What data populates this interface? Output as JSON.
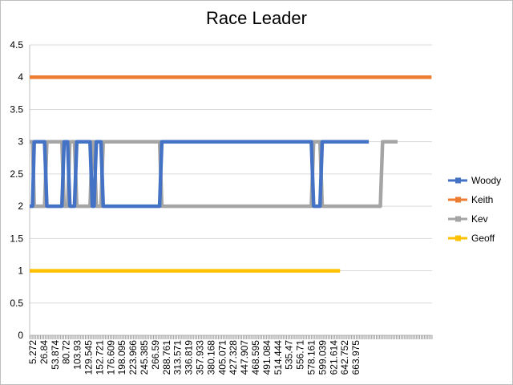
{
  "chart_data": {
    "type": "line",
    "title": "Race Leader",
    "xlabel": "",
    "ylabel": "",
    "ylim": [
      0,
      4.5
    ],
    "yticks": [
      "0",
      "0.5",
      "1",
      "1.5",
      "2",
      "2.5",
      "3",
      "3.5",
      "4",
      "4.5"
    ],
    "xtick_labels": [
      "5.272",
      "26.84",
      "53.874",
      "80.72",
      "103.93",
      "129.545",
      "152.721",
      "176.609",
      "198.095",
      "223.966",
      "245.385",
      "266.59",
      "288.761",
      "313.571",
      "336.819",
      "357.933",
      "380.168",
      "405.071",
      "427.328",
      "447.907",
      "468.595",
      "491.084",
      "514.444",
      "535.47",
      "556.71",
      "578.161",
      "599.039",
      "621.614",
      "642.752",
      "663.975"
    ],
    "x_range": [
      0,
      700
    ],
    "grid": true,
    "legend_position": "right",
    "series": [
      {
        "name": "Woody",
        "color": "#4472C4",
        "points": [
          [
            0,
            2
          ],
          [
            5,
            2
          ],
          [
            8,
            3
          ],
          [
            26,
            3
          ],
          [
            30,
            2
          ],
          [
            56,
            2
          ],
          [
            60,
            3
          ],
          [
            66,
            3
          ],
          [
            70,
            2
          ],
          [
            78,
            2
          ],
          [
            82,
            3
          ],
          [
            105,
            3
          ],
          [
            109,
            2
          ],
          [
            112,
            2
          ],
          [
            116,
            3
          ],
          [
            124,
            3
          ],
          [
            128,
            2
          ],
          [
            226,
            2
          ],
          [
            230,
            3
          ],
          [
            490,
            3
          ],
          [
            494,
            2
          ],
          [
            505,
            2
          ],
          [
            509,
            3
          ],
          [
            590,
            3
          ]
        ]
      },
      {
        "name": "Keith",
        "color": "#ED7D31",
        "points": [
          [
            0,
            4
          ],
          [
            699,
            4
          ]
        ]
      },
      {
        "name": "Kev",
        "color": "#A5A5A5",
        "points": [
          [
            0,
            3
          ],
          [
            5,
            3
          ],
          [
            8,
            2
          ],
          [
            26,
            2
          ],
          [
            30,
            3
          ],
          [
            56,
            3
          ],
          [
            60,
            2
          ],
          [
            66,
            2
          ],
          [
            70,
            3
          ],
          [
            78,
            3
          ],
          [
            82,
            2
          ],
          [
            105,
            2
          ],
          [
            109,
            3
          ],
          [
            112,
            3
          ],
          [
            116,
            2
          ],
          [
            124,
            2
          ],
          [
            128,
            3
          ],
          [
            226,
            3
          ],
          [
            230,
            2
          ],
          [
            490,
            2
          ],
          [
            494,
            3
          ],
          [
            505,
            3
          ],
          [
            509,
            2
          ],
          [
            610,
            2
          ],
          [
            614,
            3
          ],
          [
            640,
            3
          ]
        ]
      },
      {
        "name": "Geoff",
        "color": "#FFC000",
        "points": [
          [
            0,
            1
          ],
          [
            540,
            1
          ]
        ]
      }
    ]
  }
}
